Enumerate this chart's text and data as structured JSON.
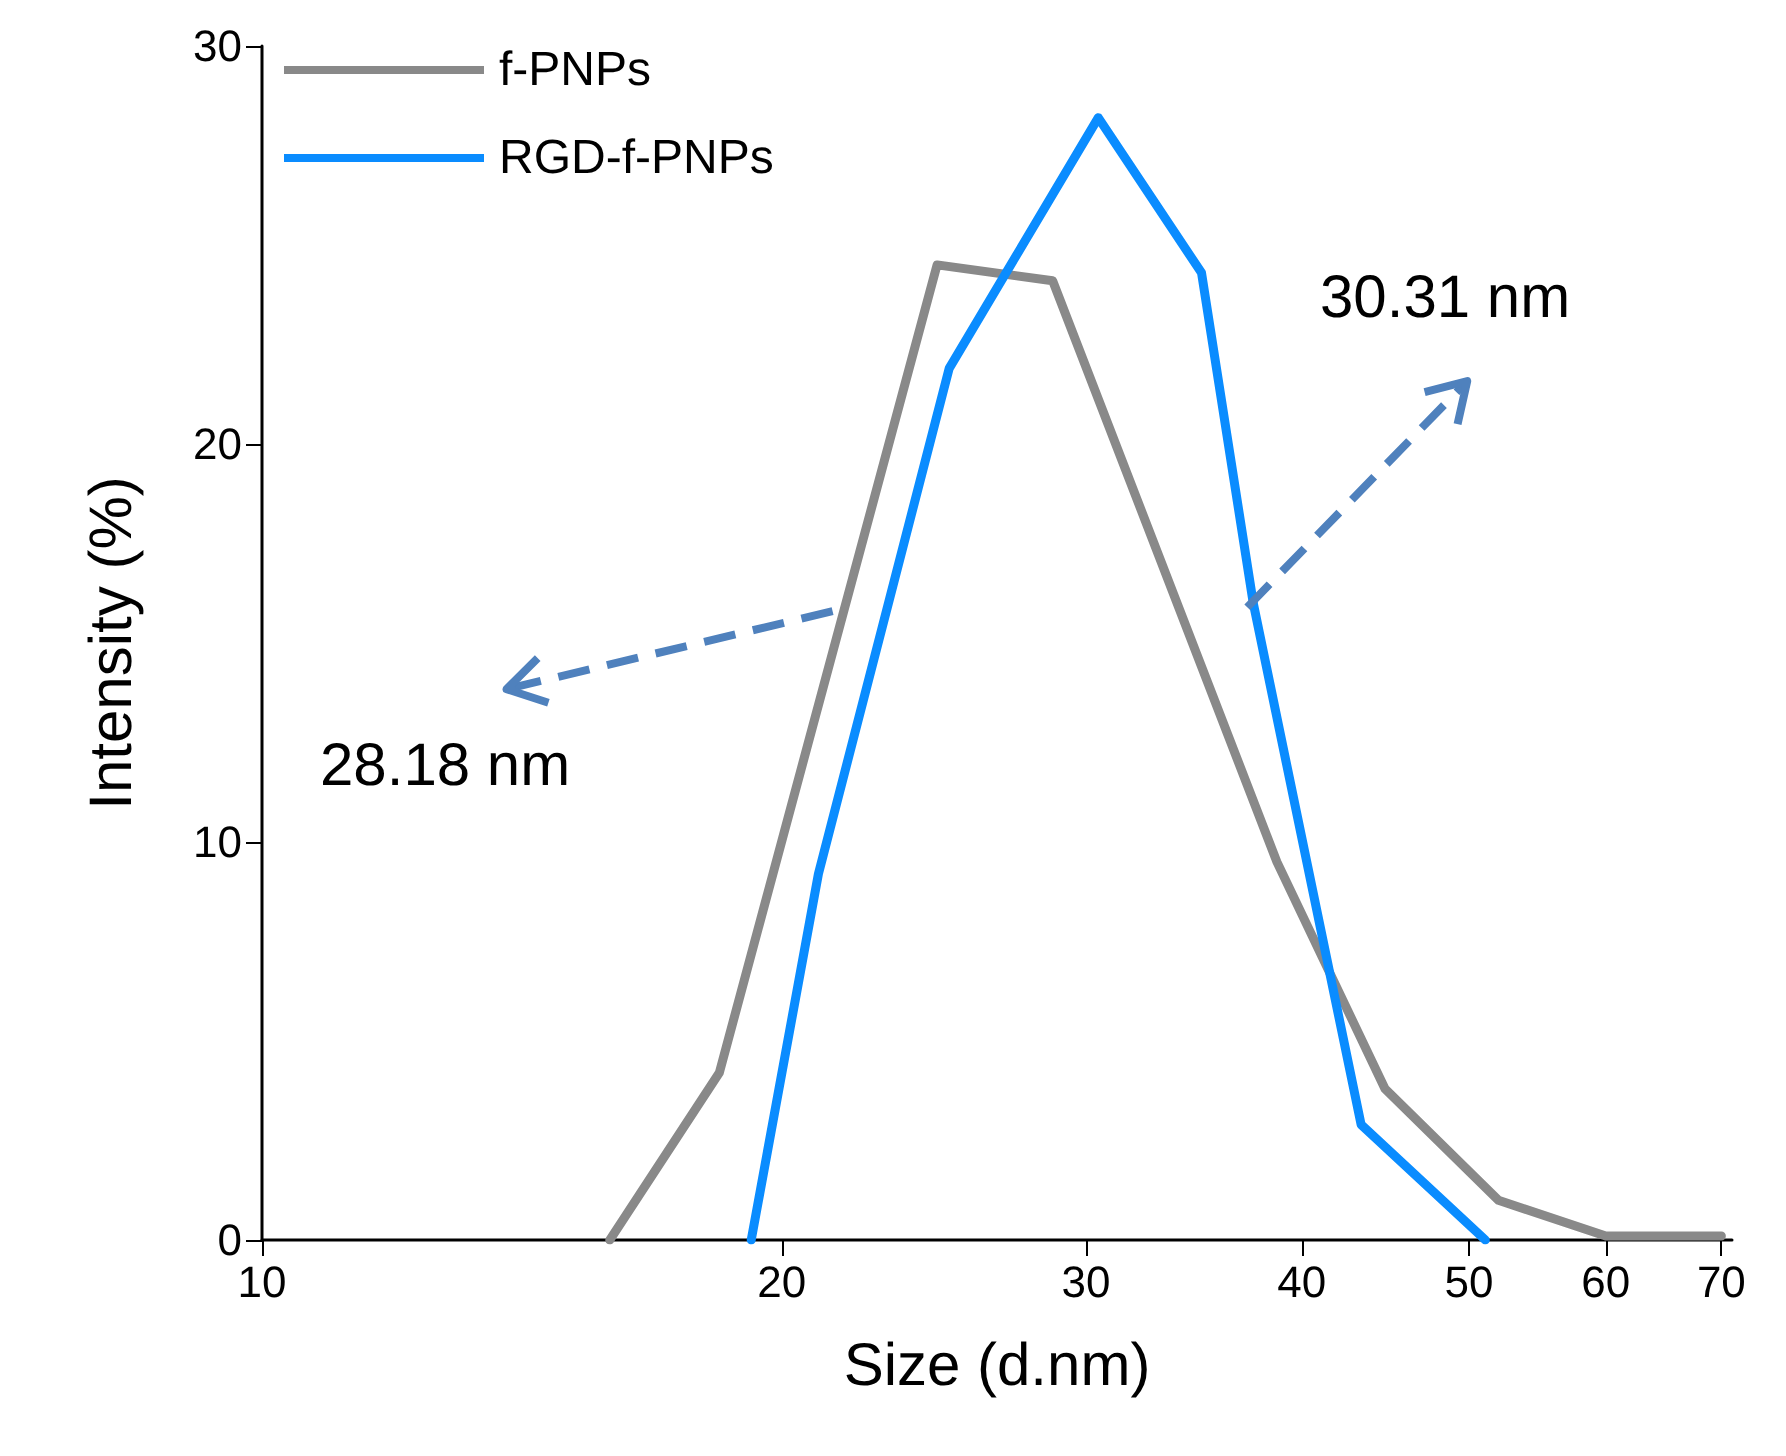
{
  "chart_data": {
    "type": "line",
    "xlabel": "Size (d.nm)",
    "ylabel": "Intensity (%)",
    "log": "x",
    "xlim": [
      10,
      71
    ],
    "xticks": [
      10,
      20,
      30,
      40,
      50,
      60,
      70
    ],
    "ylim": [
      0,
      30
    ],
    "yticks": [
      0,
      10,
      20,
      30
    ],
    "grid": false,
    "legend": "top left",
    "marker": "none",
    "line_style": "solid",
    "annotations": [
      {
        "text": "30.31 nm",
        "x": 37.2,
        "y": 15.9
      },
      {
        "text": "28.18 nm",
        "x": 21.4,
        "y": 15.8
      }
    ],
    "series": [
      {
        "name": "f-PNPs",
        "color": "#898989",
        "x": [
          15.9,
          18.4,
          24.6,
          28.7,
          38.7,
          44.7,
          52.0,
          60.0,
          70.0
        ],
        "values": [
          0,
          4.2,
          24.5,
          24.1,
          9.5,
          3.8,
          1.0,
          0.1,
          0.1
        ]
      },
      {
        "name": "RGD-f-PNPs",
        "color": "#0a8cff",
        "x": [
          19.2,
          21.0,
          25.0,
          30.5,
          35.0,
          37.5,
          43.3,
          51.1
        ],
        "values": [
          0,
          9.2,
          21.9,
          28.2,
          24.3,
          16.0,
          2.9,
          0
        ]
      }
    ]
  }
}
